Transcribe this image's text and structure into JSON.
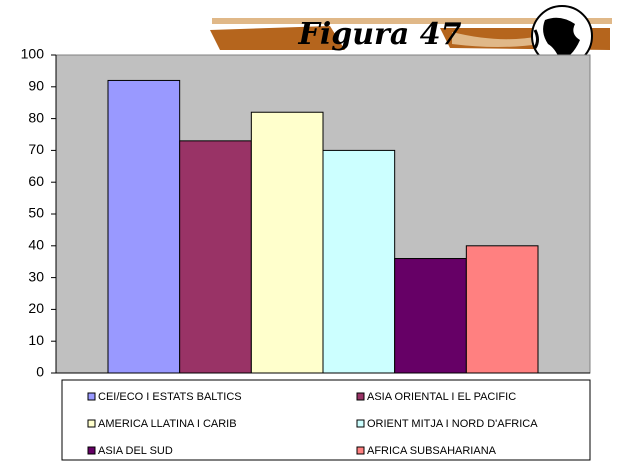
{
  "chart_data": {
    "type": "bar",
    "title": "Figura 47",
    "categories": [
      null
    ],
    "series": [
      {
        "name": "CEI/ECO I ESTATS BALTICS",
        "color": "#9999ff",
        "values": [
          92
        ]
      },
      {
        "name": "ASIA ORIENTAL I EL PACIFIC",
        "color": "#993366",
        "values": [
          73
        ]
      },
      {
        "name": "AMERICA LLATINA I CARIB",
        "color": "#ffffcc",
        "values": [
          82
        ]
      },
      {
        "name": "ORIENT MITJA I NORD D'AFRICA",
        "color": "#ccffff",
        "values": [
          70
        ]
      },
      {
        "name": "ASIA DEL SUD",
        "color": "#660066",
        "values": [
          36
        ]
      },
      {
        "name": "AFRICA SUBSAHARIANA",
        "color": "#ff8080",
        "values": [
          40
        ]
      }
    ],
    "ylim": [
      0,
      100
    ],
    "yticks": [
      0,
      10,
      20,
      30,
      40,
      50,
      60,
      70,
      80,
      90,
      100
    ],
    "grid": false,
    "plot_background": "#c0c0c0",
    "legend": "bottom"
  }
}
